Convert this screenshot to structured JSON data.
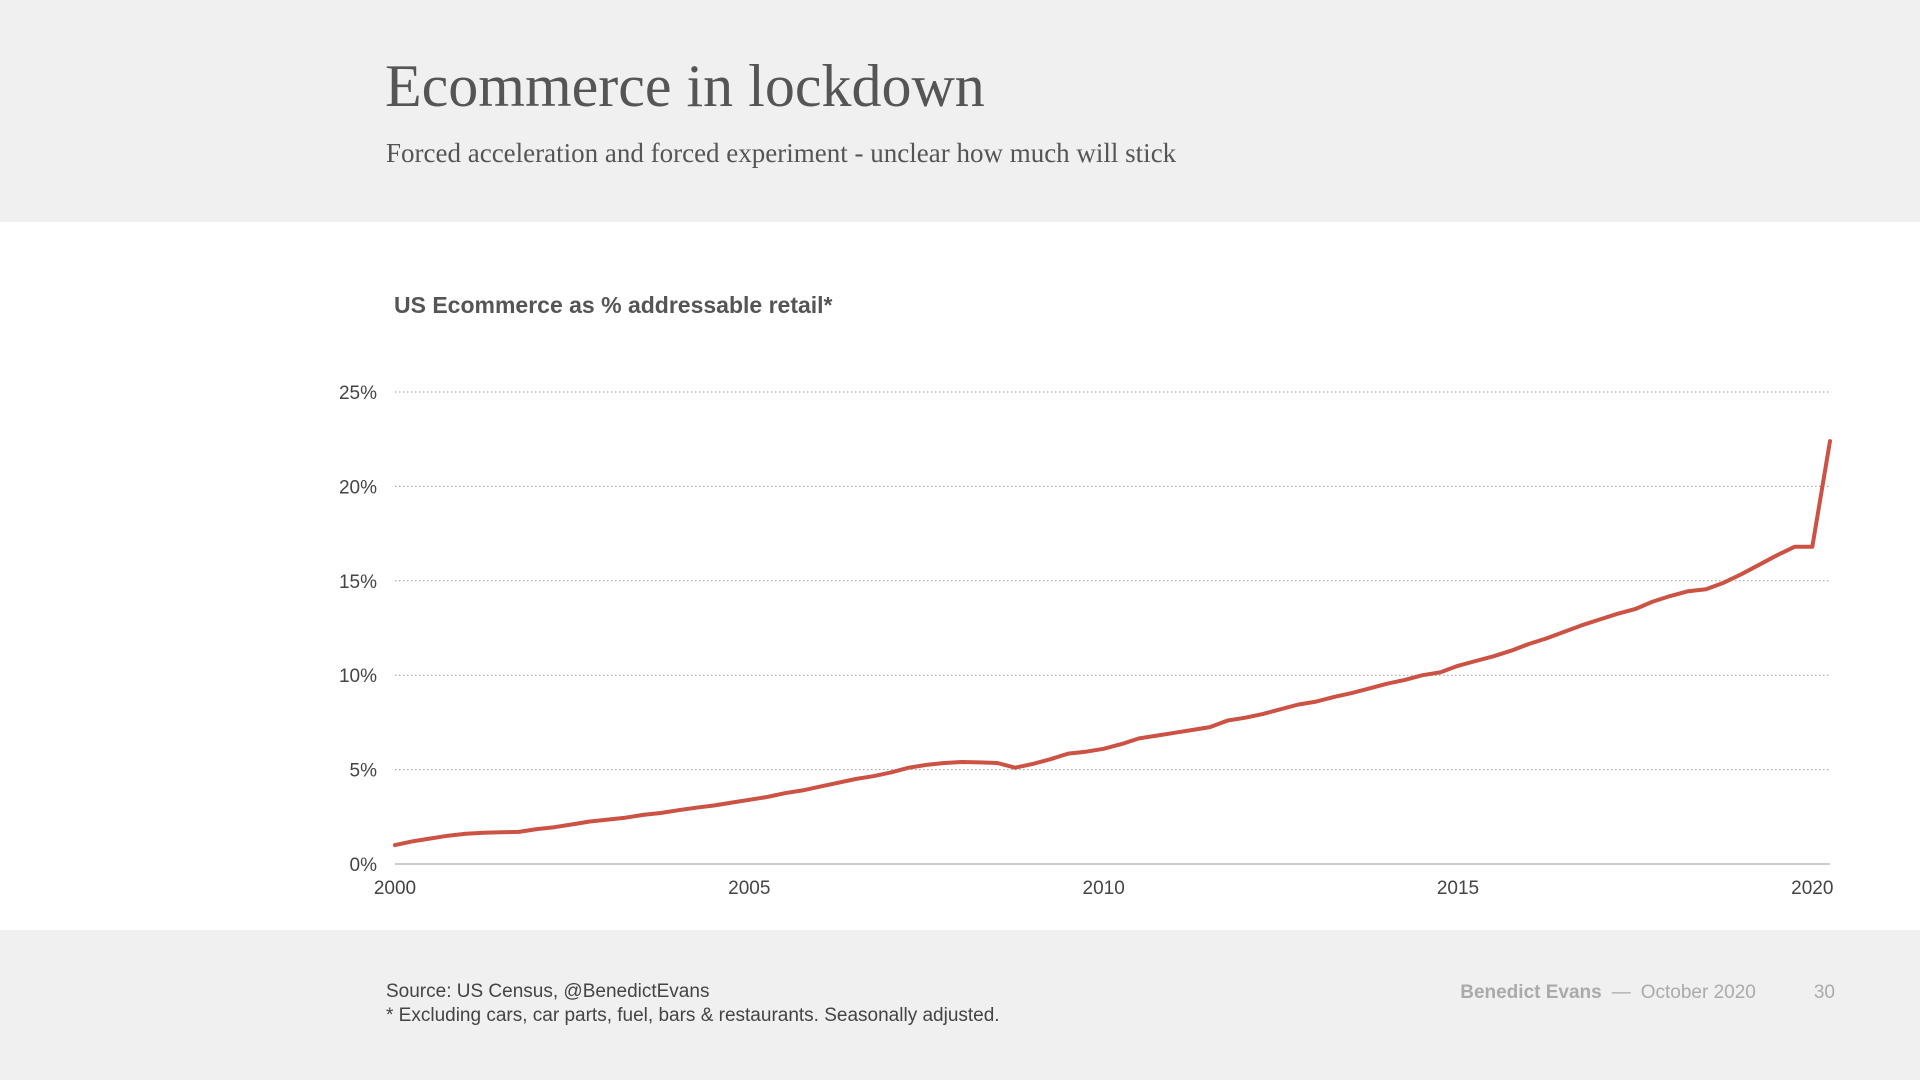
{
  "slide": {
    "title": "Ecommerce in lockdown",
    "subtitle": "Forced acceleration and forced experiment - unclear how much will stick",
    "source_line": "Source: US Census, @BenedictEvans",
    "footnote": "* Excluding cars, car parts, fuel, bars & restaurants. Seasonally adjusted.",
    "author": "Benedict Evans",
    "dash": "—",
    "date": "October 2020",
    "page_number": "30"
  },
  "colors": {
    "line": "#cc5244",
    "gridline": "#9a9a9a",
    "axis": "#bbbbbb"
  },
  "chart_data": {
    "type": "line",
    "title": "US Ecommerce as % addressable retail*",
    "xlabel": "",
    "ylabel": "",
    "xlim": [
      2000,
      2020.25
    ],
    "ylim": [
      0,
      25
    ],
    "x_ticks": [
      2000,
      2005,
      2010,
      2015,
      2020
    ],
    "x_tick_labels": [
      "2000",
      "2005",
      "2010",
      "2015",
      "2020"
    ],
    "y_ticks": [
      0,
      5,
      10,
      15,
      20,
      25
    ],
    "y_tick_labels": [
      "0%",
      "5%",
      "10%",
      "15%",
      "20%",
      "25%"
    ],
    "grid": "horizontal dotted",
    "series": [
      {
        "name": "",
        "x": [
          2000.0,
          2000.25,
          2000.5,
          2000.75,
          2001.0,
          2001.25,
          2001.5,
          2001.75,
          2002.0,
          2002.25,
          2002.5,
          2002.75,
          2003.0,
          2003.25,
          2003.5,
          2003.75,
          2004.0,
          2004.25,
          2004.5,
          2004.75,
          2005.0,
          2005.25,
          2005.5,
          2005.75,
          2006.0,
          2006.25,
          2006.5,
          2006.75,
          2007.0,
          2007.25,
          2007.5,
          2007.75,
          2008.0,
          2008.25,
          2008.5,
          2008.75,
          2009.0,
          2009.25,
          2009.5,
          2009.75,
          2010.0,
          2010.25,
          2010.5,
          2010.75,
          2011.0,
          2011.25,
          2011.5,
          2011.75,
          2012.0,
          2012.25,
          2012.5,
          2012.75,
          2013.0,
          2013.25,
          2013.5,
          2013.75,
          2014.0,
          2014.25,
          2014.5,
          2014.75,
          2015.0,
          2015.25,
          2015.5,
          2015.75,
          2016.0,
          2016.25,
          2016.5,
          2016.75,
          2017.0,
          2017.25,
          2017.5,
          2017.75,
          2018.0,
          2018.25,
          2018.5,
          2018.75,
          2019.0,
          2019.25,
          2019.5,
          2019.75,
          2020.0,
          2020.25
        ],
        "y": [
          1.0,
          1.2,
          1.35,
          1.5,
          1.6,
          1.65,
          1.68,
          1.7,
          1.85,
          1.95,
          2.1,
          2.25,
          2.35,
          2.45,
          2.6,
          2.7,
          2.85,
          2.98,
          3.1,
          3.25,
          3.4,
          3.55,
          3.75,
          3.9,
          4.1,
          4.3,
          4.5,
          4.65,
          4.85,
          5.1,
          5.25,
          5.35,
          5.4,
          5.38,
          5.35,
          5.1,
          5.3,
          5.55,
          5.85,
          5.95,
          6.1,
          6.35,
          6.65,
          6.8,
          6.95,
          7.1,
          7.25,
          7.6,
          7.75,
          7.95,
          8.2,
          8.45,
          8.6,
          8.85,
          9.05,
          9.3,
          9.55,
          9.75,
          10.0,
          10.15,
          10.5,
          10.75,
          11.0,
          11.3,
          11.65,
          11.95,
          12.3,
          12.65,
          12.95,
          13.25,
          13.5,
          13.9,
          14.2,
          14.45,
          14.55,
          14.9,
          15.35,
          15.85,
          16.35,
          16.8,
          16.8,
          22.4
        ]
      }
    ]
  }
}
